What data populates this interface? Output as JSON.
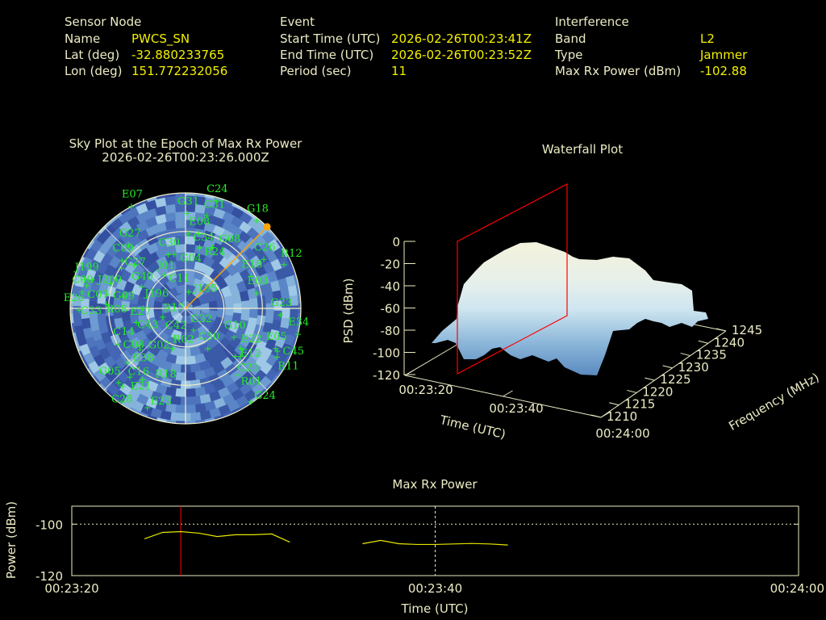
{
  "header": {
    "sensor": {
      "heading": "Sensor Node",
      "rows": [
        {
          "label": "Name",
          "value": "PWCS_SN"
        },
        {
          "label": "Lat (deg)",
          "value": "-32.880233765"
        },
        {
          "label": "Lon (deg)",
          "value": "151.772232056"
        }
      ]
    },
    "event": {
      "heading": "Event",
      "rows": [
        {
          "label": "Start Time (UTC)",
          "value": "2026-02-26T00:23:41Z"
        },
        {
          "label": "End Time (UTC)",
          "value": "2026-02-26T00:23:52Z"
        },
        {
          "label": "Period (sec)",
          "value": "11"
        }
      ]
    },
    "interference": {
      "heading": "Interference",
      "rows": [
        {
          "label": "Band",
          "value": "L2"
        },
        {
          "label": "Type",
          "value": "Jammer"
        },
        {
          "label": "Max Rx Power (dBm)",
          "value": "-102.88"
        }
      ]
    }
  },
  "colors": {
    "label": "#ecebc4",
    "value": "#f2f000",
    "satellite": "#22ee22",
    "jammer": "#ffa500",
    "epoch_marker": "#ff0000",
    "power_line": "#e6e600",
    "sky_palette": [
      "#3a5aa8",
      "#4466b4",
      "#4d74bd",
      "#5a86c8",
      "#6d9bd2",
      "#86b3dc",
      "#9fc8e6",
      "#3550a0"
    ]
  },
  "chart_data": [
    {
      "type": "scatter",
      "subtype": "polar-skyplot",
      "title": "Sky Plot at the Epoch of Max Rx Power",
      "subtitle": "2026-02-26T00:23:26.000Z",
      "elevation_rings": [
        0,
        30,
        60
      ],
      "jammer_direction": {
        "az": 45,
        "el": 0
      },
      "satellites": [
        {
          "id": "E07",
          "az": 332,
          "el": 0
        },
        {
          "id": "C24",
          "az": 16,
          "el": 3
        },
        {
          "id": "G31",
          "az": 1,
          "el": 16
        },
        {
          "id": "C31",
          "az": 13,
          "el": 16
        },
        {
          "id": "G18",
          "az": 39,
          "el": 2
        },
        {
          "id": "E08",
          "az": 10,
          "el": 31
        },
        {
          "id": "C34",
          "az": 2,
          "el": 32
        },
        {
          "id": "R24",
          "az": 13,
          "el": 42
        },
        {
          "id": "G08",
          "az": 24,
          "el": 38
        },
        {
          "id": "G04",
          "az": 13,
          "el": 41
        },
        {
          "id": "G27",
          "az": 318,
          "el": 24
        },
        {
          "id": "C30",
          "az": 342,
          "el": 46
        },
        {
          "id": "J01",
          "az": 348,
          "el": 47
        },
        {
          "id": "C26",
          "az": 58,
          "el": 18
        },
        {
          "id": "R12",
          "az": 66,
          "el": 6
        },
        {
          "id": "C09",
          "az": 307,
          "el": 28
        },
        {
          "id": "G40",
          "az": 310,
          "el": 38
        },
        {
          "id": "C27",
          "az": 302,
          "el": 31
        },
        {
          "id": "C11",
          "az": 327,
          "el": 59
        },
        {
          "id": "E18",
          "az": 64,
          "el": 33
        },
        {
          "id": "J199",
          "az": 286,
          "el": 8
        },
        {
          "id": "J200",
          "az": 287,
          "el": 14
        },
        {
          "id": "J196",
          "az": 296,
          "el": 52
        },
        {
          "id": "C07",
          "az": 283,
          "el": 11
        },
        {
          "id": "G09",
          "az": 288,
          "el": 28
        },
        {
          "id": "C00",
          "az": 279,
          "el": 8
        },
        {
          "id": "E03",
          "az": 78,
          "el": 33
        },
        {
          "id": "J195",
          "az": 11,
          "el": 77
        },
        {
          "id": "R08",
          "az": 280,
          "el": 28
        },
        {
          "id": "E27",
          "az": 281,
          "el": 41
        },
        {
          "id": "C33",
          "az": 273,
          "el": 28
        },
        {
          "id": "E26",
          "az": 269,
          "el": 7
        },
        {
          "id": "C43",
          "az": 270,
          "el": 57
        },
        {
          "id": "G23",
          "az": 94,
          "el": 16
        },
        {
          "id": "R17",
          "az": 249,
          "el": 71
        },
        {
          "id": "C14",
          "az": 254,
          "el": 50
        },
        {
          "id": "E34",
          "az": 103,
          "el": 0
        },
        {
          "id": "G32",
          "az": 160,
          "el": 72
        },
        {
          "id": "C42",
          "az": 200,
          "el": 66
        },
        {
          "id": "R02",
          "az": 198,
          "el": 57
        },
        {
          "id": "G10",
          "az": 121,
          "el": 46
        },
        {
          "id": "C50",
          "az": 151,
          "el": 54
        },
        {
          "id": "E05",
          "az": 114,
          "el": 13
        },
        {
          "id": "C45",
          "az": 115,
          "el": 11
        },
        {
          "id": "E22",
          "az": 126,
          "el": 37
        },
        {
          "id": "R11",
          "az": 118,
          "el": 9
        },
        {
          "id": "E12",
          "az": 134,
          "el": 36
        },
        {
          "id": "C21",
          "az": 131,
          "el": 33
        },
        {
          "id": "C08",
          "az": 242,
          "el": 30
        },
        {
          "id": "E38",
          "az": 231,
          "el": 44
        },
        {
          "id": "G02",
          "az": 228,
          "el": 42
        },
        {
          "id": "C16",
          "az": 227,
          "el": 28
        },
        {
          "id": "E21",
          "az": 219,
          "el": 21
        },
        {
          "id": "R18",
          "az": 211,
          "el": 25
        },
        {
          "id": "R01",
          "az": 142,
          "el": 24
        },
        {
          "id": "G05",
          "az": 222,
          "el": 12
        },
        {
          "id": "C28",
          "az": 219,
          "el": 12
        },
        {
          "id": "G24",
          "az": 145,
          "el": 1
        },
        {
          "id": "E23",
          "az": 201,
          "el": 7
        }
      ]
    },
    {
      "type": "surface",
      "title": "Waterfall Plot",
      "zlabel": "PSD (dBm)",
      "xlabel": "Time (UTC)",
      "ylabel": "Frequency (MHz)",
      "z_ticks": [
        "0",
        "-20",
        "-40",
        "-60",
        "-80",
        "-100",
        "-120"
      ],
      "x_ticks": [
        "00:23:20",
        "00:23:40",
        "00:24:00"
      ],
      "y_ticks": [
        "1210",
        "1215",
        "1220",
        "1225",
        "1230",
        "1235",
        "1240",
        "1245"
      ],
      "zlim": [
        -120,
        0
      ],
      "ylim": [
        1210,
        1245
      ],
      "epoch_plane_time": "00:23:26"
    },
    {
      "type": "line",
      "title": "Max Rx Power",
      "xlabel": "Time (UTC)",
      "ylabel": "Power (dBm)",
      "x_ticks": [
        "00:23:20",
        "00:23:40",
        "00:24:00"
      ],
      "y_ticks": [
        "-100",
        "-120"
      ],
      "xlim_seconds_after_00_23_20": [
        0,
        40
      ],
      "ylim": [
        -120,
        -93
      ],
      "epoch_marker_time": "00:23:26",
      "series": [
        {
          "t": [
            "00:23:24",
            "00:23:25",
            "00:23:26",
            "00:23:27",
            "00:23:28",
            "00:23:29",
            "00:23:30",
            "00:23:31",
            "00:23:32"
          ],
          "values": [
            -105.7,
            -103.2,
            -102.9,
            -103.5,
            -104.8,
            -104.1,
            -104.1,
            -103.8,
            -107.0
          ]
        },
        {
          "t": [
            "00:23:36",
            "00:23:37",
            "00:23:38",
            "00:23:39",
            "00:23:40",
            "00:23:41",
            "00:23:42",
            "00:23:43",
            "00:23:44"
          ],
          "values": [
            -107.6,
            -106.3,
            -107.6,
            -107.9,
            -107.9,
            -107.7,
            -107.5,
            -107.7,
            -108.1
          ]
        }
      ]
    }
  ]
}
